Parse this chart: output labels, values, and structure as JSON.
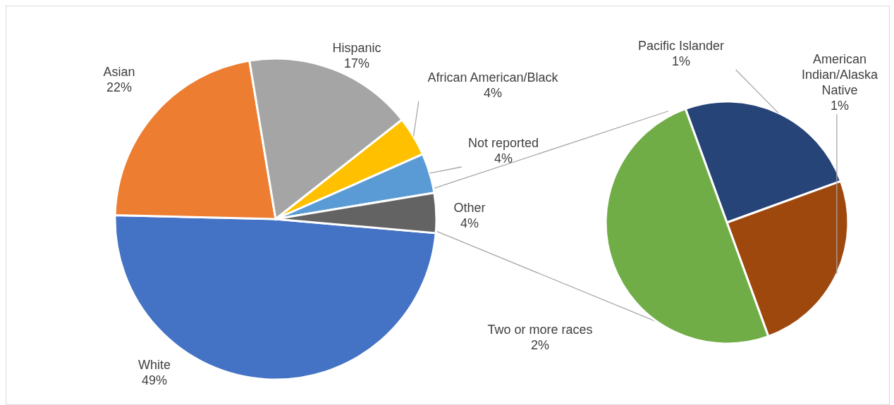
{
  "chart_data": [
    {
      "type": "pie",
      "categories": [
        "White",
        "Asian",
        "Hispanic",
        "African American/Black",
        "Not reported",
        "Other"
      ],
      "values": [
        49,
        22,
        17,
        4,
        4,
        4
      ],
      "value_labels": [
        "49%",
        "22%",
        "17%",
        "4%",
        "4%",
        "4%"
      ],
      "colors": [
        "#4472c4",
        "#ed7d31",
        "#a5a5a5",
        "#ffc000",
        "#5b9bd5",
        "#636363"
      ]
    },
    {
      "type": "pie",
      "categories": [
        "Pacific Islander",
        "American Indian/Alaska Native",
        "Two or more races"
      ],
      "values": [
        1,
        1,
        2
      ],
      "value_labels": [
        "1%",
        "1%",
        "2%"
      ],
      "colors": [
        "#264478",
        "#9e480e",
        "#70ad47"
      ]
    }
  ]
}
